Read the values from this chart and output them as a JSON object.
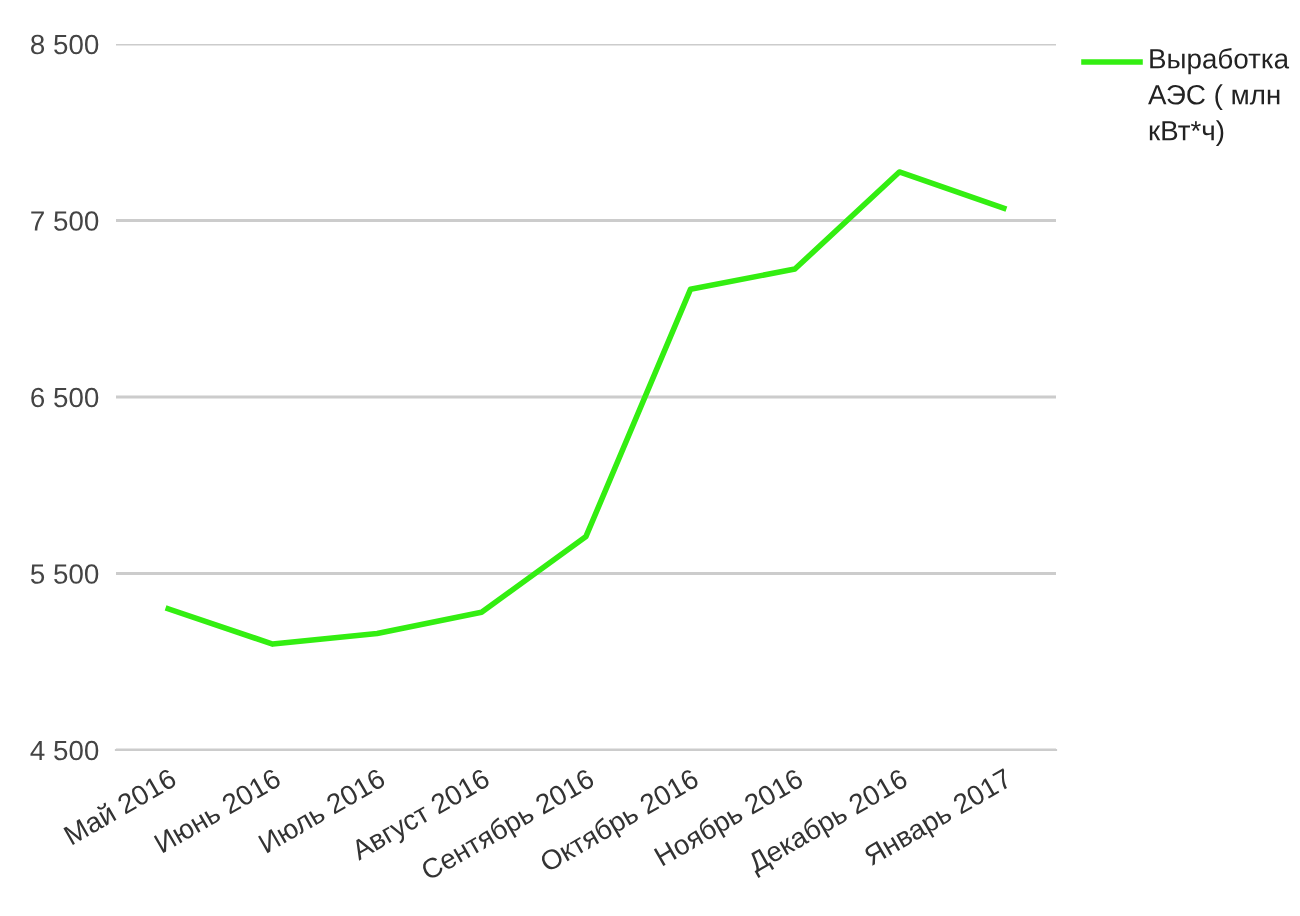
{
  "chart_data": {
    "type": "line",
    "categories": [
      "Май 2016",
      "Июнь 2016",
      "Июль 2016",
      "Август 2016",
      "Сентябрь 2016",
      "Октябрь 2016",
      "Ноябрь 2016",
      "Декабрь 2016",
      "Январь 2017"
    ],
    "series": [
      {
        "name": "Выработка АЭС ( млн кВт*ч)",
        "color": "#33ee11",
        "values": [
          5300,
          5100,
          5160,
          5280,
          5710,
          7110,
          7225,
          7775,
          7570
        ]
      }
    ],
    "ylim": [
      4500,
      8500
    ],
    "yticks": [
      {
        "value": 4500,
        "label": "4 500"
      },
      {
        "value": 5500,
        "label": "5 500"
      },
      {
        "value": 6500,
        "label": "6 500"
      },
      {
        "value": 7500,
        "label": "7 500"
      },
      {
        "value": 8500,
        "label": "8 500"
      }
    ],
    "grid": "y",
    "legend": "top right",
    "marker": "none",
    "line_style": "solid"
  }
}
